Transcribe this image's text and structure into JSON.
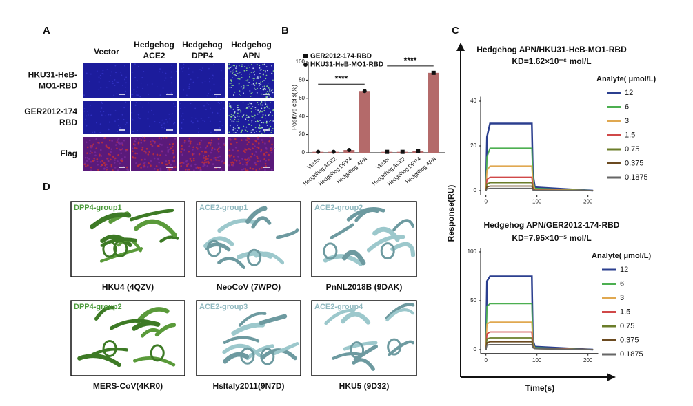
{
  "panel_labels": [
    "A",
    "B",
    "C",
    "D"
  ],
  "panel_a": {
    "columns": [
      [
        "Vector"
      ],
      [
        "Hedgehog",
        "ACE2"
      ],
      [
        "Hedgehog",
        "DPP4"
      ],
      [
        "Hedgehog",
        "APN"
      ]
    ],
    "rows": [
      [
        "HKU31-HeB-",
        "MO1-RBD"
      ],
      [
        "GER2012-174",
        "RBD"
      ],
      [
        "Flag"
      ]
    ]
  },
  "panel_d": {
    "structures": [
      {
        "tag": "DPP4-group1",
        "caption": "HKU4 (4QZV)"
      },
      {
        "tag": "ACE2-group1",
        "caption": "NeoCoV (7WPO)"
      },
      {
        "tag": "ACE2-group2",
        "caption": "PnNL2018B (9DAK)"
      },
      {
        "tag": "DPP4-group2",
        "caption": "MERS-CoV(4KR0)"
      },
      {
        "tag": "ACE2-group3",
        "caption": "HsItaly2011(9N7D)"
      },
      {
        "tag": "ACE2-group4",
        "caption": "HKU5 (9D32)"
      }
    ]
  },
  "chart_data": [
    {
      "type": "bar",
      "ylabel": "Positive cells(%)",
      "categories": [
        "Vector",
        "Hedgehog ACE2",
        "Hedgehog DPP4",
        "Hedgehog APN"
      ],
      "series": [
        {
          "name": "GER2012-174-RBD",
          "marker": "square",
          "color": "#b46a6a",
          "values": [
            1,
            1,
            2,
            88
          ]
        },
        {
          "name": "HKU31-HeB-MO1-RBD",
          "marker": "circle",
          "color": "#b46a6a",
          "values": [
            1,
            1,
            3,
            68
          ]
        }
      ],
      "annotations": [
        "****",
        "****"
      ],
      "ylim": [
        0,
        100
      ],
      "yticks": [
        0,
        20,
        40,
        60,
        80,
        100
      ]
    },
    {
      "type": "line",
      "title": "Hedgehog APN/HKU31-HeB-MO1-RBD",
      "subtitle": "KD=1.62×10⁻⁶ mol/L",
      "ylabel": "Response(RU)",
      "legend_title": "Analyte( μmol/L)",
      "x": [
        0,
        2,
        8,
        90,
        92,
        96,
        210
      ],
      "xlim": [
        -5,
        220
      ],
      "xticks": [
        0,
        100,
        200
      ],
      "ylim": [
        -2,
        42
      ],
      "yticks": [
        0,
        20,
        40
      ],
      "series": [
        {
          "name": "12",
          "color": "#2b3f8f",
          "values": [
            0,
            24,
            30,
            30,
            7.5,
            1.5,
            0
          ]
        },
        {
          "name": "6",
          "color": "#4caf50",
          "values": [
            0,
            15,
            19,
            19,
            4.8,
            1,
            0
          ]
        },
        {
          "name": "3",
          "color": "#e0a850",
          "values": [
            0,
            9,
            11,
            11,
            2.8,
            0.6,
            0
          ]
        },
        {
          "name": "1.5",
          "color": "#d04848",
          "values": [
            0,
            5,
            6,
            6,
            1.5,
            0.3,
            0
          ]
        },
        {
          "name": "0.75",
          "color": "#6b7d2a",
          "values": [
            0,
            3,
            3.5,
            3.5,
            0.9,
            0.2,
            0
          ]
        },
        {
          "name": "0.375",
          "color": "#6b4a20",
          "values": [
            0,
            1.6,
            2,
            2,
            0.5,
            0.1,
            0
          ]
        },
        {
          "name": "0.1875",
          "color": "#666666",
          "values": [
            0,
            0.8,
            1,
            1,
            0.3,
            0.1,
            0
          ]
        }
      ]
    },
    {
      "type": "line",
      "title": "Hedgehog APN/GER2012-174-RBD",
      "subtitle": "KD=7.95×10⁻⁵ mol/L",
      "xlabel": "Time(s)",
      "legend_title": "Analyte( μmol/L)",
      "x": [
        0,
        2,
        8,
        90,
        92,
        96,
        210
      ],
      "xlim": [
        -5,
        220
      ],
      "xticks": [
        0,
        100,
        200
      ],
      "ylim": [
        -4,
        104
      ],
      "yticks": [
        0,
        50,
        100
      ],
      "series": [
        {
          "name": "12",
          "color": "#2b3f8f",
          "values": [
            0,
            70,
            75,
            75,
            10,
            3,
            0
          ]
        },
        {
          "name": "6",
          "color": "#4caf50",
          "values": [
            0,
            44,
            47,
            47,
            7,
            2,
            0
          ]
        },
        {
          "name": "3",
          "color": "#e0a850",
          "values": [
            0,
            26,
            28,
            28,
            5,
            1.5,
            0
          ]
        },
        {
          "name": "1.5",
          "color": "#d04848",
          "values": [
            0,
            16,
            18,
            18,
            4,
            1.5,
            0
          ]
        },
        {
          "name": "0.75",
          "color": "#6b7d2a",
          "values": [
            0,
            11,
            12,
            12,
            3,
            1,
            0
          ]
        },
        {
          "name": "0.375",
          "color": "#6b4a20",
          "values": [
            0,
            7,
            8,
            8,
            2,
            1,
            0
          ]
        },
        {
          "name": "0.1875",
          "color": "#666666",
          "values": [
            0,
            4.5,
            5,
            5,
            2,
            1,
            0
          ]
        }
      ]
    }
  ]
}
